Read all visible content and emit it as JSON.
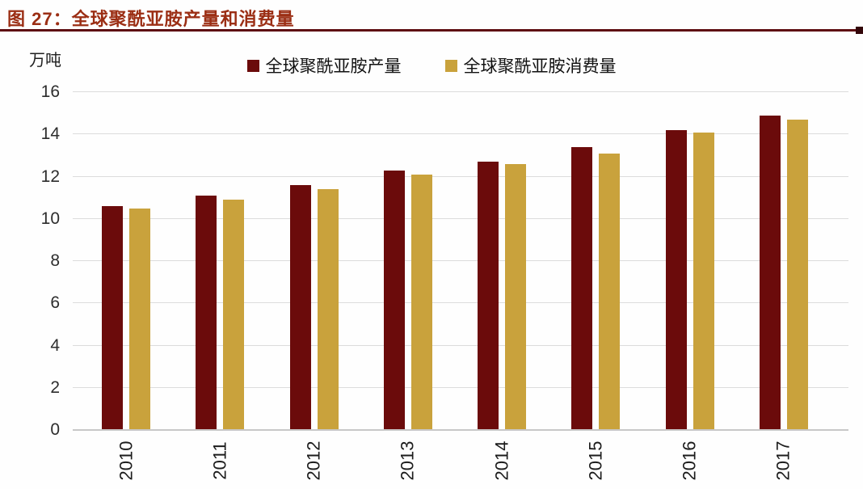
{
  "header": {
    "title": "图 27：全球聚酰亚胺产量和消费量"
  },
  "chart_data": {
    "type": "bar",
    "title": "图 27：全球聚酰亚胺产量和消费量",
    "ylabel": "万吨",
    "xlabel": "",
    "categories": [
      "2010",
      "2011",
      "2012",
      "2013",
      "2014",
      "2015",
      "2016",
      "2017"
    ],
    "series": [
      {
        "name": "全球聚酰亚胺产量",
        "color": "#6b0b0b",
        "values": [
          10.6,
          11.1,
          11.6,
          12.3,
          12.7,
          13.4,
          14.2,
          14.9
        ]
      },
      {
        "name": "全球聚酰亚胺消费量",
        "color": "#c9a23c",
        "values": [
          10.5,
          10.9,
          11.4,
          12.1,
          12.6,
          13.1,
          14.1,
          14.7
        ]
      }
    ],
    "ylim": [
      0,
      16
    ],
    "yticks": [
      0,
      2,
      4,
      6,
      8,
      10,
      12,
      14,
      16
    ],
    "grid": true,
    "legend_position": "top-center",
    "x_tick_rotation": -90
  },
  "colors": {
    "title": "#9b2e14",
    "divider": "#5e0e12",
    "gridline": "#dcdcdc",
    "axis_line": "#c8c8c8"
  }
}
